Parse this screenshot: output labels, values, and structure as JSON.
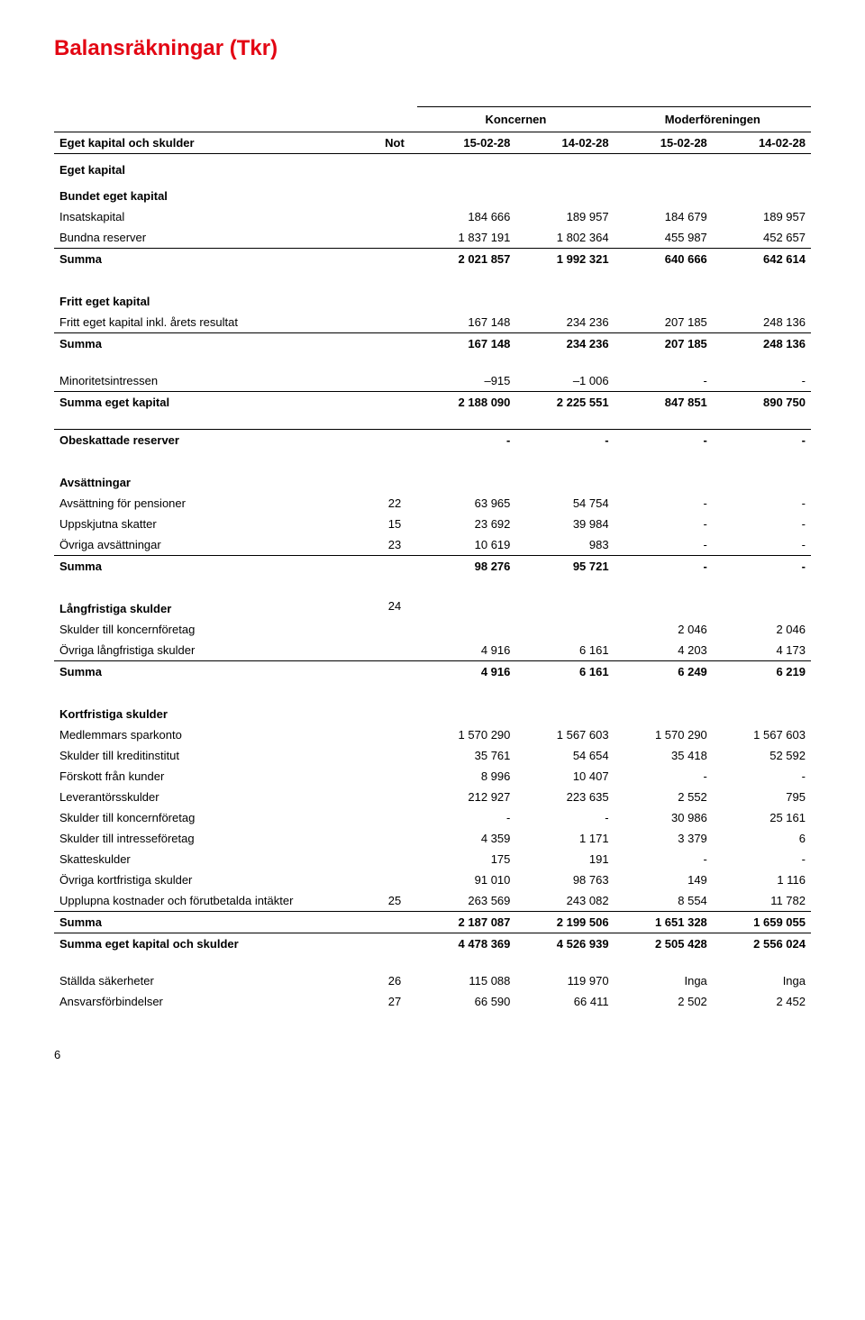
{
  "title": "Balansräkningar (Tkr)",
  "groupHeaders": {
    "g1": "Koncernen",
    "g2": "Moderföreningen"
  },
  "colHeaders": {
    "label": "Eget kapital och skulder",
    "note": "Not",
    "c1": "15-02-28",
    "c2": "14-02-28",
    "c3": "15-02-28",
    "c4": "14-02-28"
  },
  "rows": [
    {
      "t": "section",
      "label": "Eget kapital"
    },
    {
      "t": "section",
      "label": "Bundet eget kapital"
    },
    {
      "t": "data",
      "label": "Insatskapital",
      "note": "",
      "v": [
        "184 666",
        "189 957",
        "184 679",
        "189 957"
      ]
    },
    {
      "t": "data",
      "label": "Bundna reserver",
      "note": "",
      "v": [
        "1 837 191",
        "1 802 364",
        "455 987",
        "452 657"
      ]
    },
    {
      "t": "sum",
      "label": "Summa",
      "note": "",
      "v": [
        "2 021 857",
        "1 992 321",
        "640 666",
        "642 614"
      ]
    },
    {
      "t": "spacer"
    },
    {
      "t": "section",
      "label": "Fritt eget kapital"
    },
    {
      "t": "data",
      "label": "Fritt eget kapital inkl. årets resultat",
      "note": "",
      "v": [
        "167 148",
        "234 236",
        "207 185",
        "248 136"
      ]
    },
    {
      "t": "sum",
      "label": "Summa",
      "note": "",
      "v": [
        "167 148",
        "234 236",
        "207 185",
        "248 136"
      ]
    },
    {
      "t": "spacer"
    },
    {
      "t": "data",
      "label": "Minoritetsintressen",
      "note": "",
      "v": [
        "–915",
        "–1 006",
        "-",
        "-"
      ]
    },
    {
      "t": "sum",
      "label": "Summa eget kapital",
      "note": "",
      "v": [
        "2 188 090",
        "2 225 551",
        "847 851",
        "890 750"
      ]
    },
    {
      "t": "spacer"
    },
    {
      "t": "sum",
      "label": "Obeskattade reserver",
      "note": "",
      "v": [
        "-",
        "-",
        "-",
        "-"
      ]
    },
    {
      "t": "spacer"
    },
    {
      "t": "section",
      "label": "Avsättningar"
    },
    {
      "t": "data",
      "label": "Avsättning för pensioner",
      "note": "22",
      "v": [
        "63 965",
        "54 754",
        "-",
        "-"
      ]
    },
    {
      "t": "data",
      "label": "Uppskjutna skatter",
      "note": "15",
      "v": [
        "23 692",
        "39 984",
        "-",
        "-"
      ]
    },
    {
      "t": "data",
      "label": "Övriga avsättningar",
      "note": "23",
      "v": [
        "10 619",
        "983",
        "-",
        "-"
      ]
    },
    {
      "t": "sum",
      "label": "Summa",
      "note": "",
      "v": [
        "98 276",
        "95 721",
        "-",
        "-"
      ]
    },
    {
      "t": "spacer"
    },
    {
      "t": "section",
      "label": "Långfristiga skulder",
      "note": "24"
    },
    {
      "t": "data",
      "label": "Skulder till koncernföretag",
      "note": "",
      "v": [
        "",
        "",
        "2 046",
        "2 046"
      ]
    },
    {
      "t": "data",
      "label": "Övriga långfristiga skulder",
      "note": "",
      "v": [
        "4 916",
        "6 161",
        "4 203",
        "4 173"
      ]
    },
    {
      "t": "sum",
      "label": "Summa",
      "note": "",
      "v": [
        "4 916",
        "6 161",
        "6 249",
        "6 219"
      ]
    },
    {
      "t": "spacer"
    },
    {
      "t": "section",
      "label": "Kortfristiga skulder"
    },
    {
      "t": "data",
      "label": "Medlemmars sparkonto",
      "note": "",
      "v": [
        "1 570 290",
        "1 567 603",
        "1 570 290",
        "1 567 603"
      ]
    },
    {
      "t": "data",
      "label": "Skulder till kreditinstitut",
      "note": "",
      "v": [
        "35 761",
        "54 654",
        "35 418",
        "52 592"
      ]
    },
    {
      "t": "data",
      "label": "Förskott från kunder",
      "note": "",
      "v": [
        "8 996",
        "10 407",
        "-",
        "-"
      ]
    },
    {
      "t": "data",
      "label": "Leverantörsskulder",
      "note": "",
      "v": [
        "212 927",
        "223 635",
        "2 552",
        "795"
      ]
    },
    {
      "t": "data",
      "label": "Skulder till koncernföretag",
      "note": "",
      "v": [
        "-",
        "-",
        "30 986",
        "25 161"
      ]
    },
    {
      "t": "data",
      "label": "Skulder till intresseföretag",
      "note": "",
      "v": [
        "4 359",
        "1 171",
        "3 379",
        "6"
      ]
    },
    {
      "t": "data",
      "label": "Skatteskulder",
      "note": "",
      "v": [
        "175",
        "191",
        "-",
        "-"
      ]
    },
    {
      "t": "data",
      "label": "Övriga kortfristiga skulder",
      "note": "",
      "v": [
        "91 010",
        "98 763",
        "149",
        "1 116"
      ]
    },
    {
      "t": "data",
      "label": "Upplupna kostnader och förutbetalda intäkter",
      "note": "25",
      "v": [
        "263 569",
        "243 082",
        "8 554",
        "11 782"
      ]
    },
    {
      "t": "sum",
      "label": "Summa",
      "note": "",
      "v": [
        "2 187 087",
        "2 199 506",
        "1 651 328",
        "1 659 055"
      ]
    },
    {
      "t": "sum",
      "label": "Summa eget kapital och skulder",
      "note": "",
      "v": [
        "4 478 369",
        "4 526 939",
        "2 505 428",
        "2 556 024"
      ]
    },
    {
      "t": "spacer"
    },
    {
      "t": "data",
      "label": "Ställda säkerheter",
      "note": "26",
      "v": [
        "115 088",
        "119 970",
        "Inga",
        "Inga"
      ]
    },
    {
      "t": "data",
      "label": "Ansvarsförbindelser",
      "note": "27",
      "v": [
        "66 590",
        "66 411",
        "2 502",
        "2 452"
      ]
    }
  ],
  "pageNumber": "6"
}
